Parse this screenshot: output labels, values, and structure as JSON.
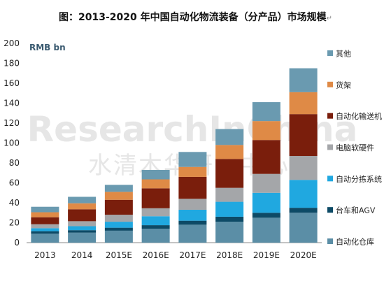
{
  "title": "图：2013-2020 年中国自动化物流装备（分产品）市场规模",
  "title_mark": "↵",
  "watermark": {
    "main": "ResearchInChina",
    "sub": "水清木华研究中心"
  },
  "chart_data": {
    "type": "bar",
    "stacked": true,
    "unit_label": "RMB bn",
    "categories": [
      "2013",
      "2014",
      "2015E",
      "2016E",
      "2017E",
      "2018E",
      "2019E",
      "2020E"
    ],
    "ylim": [
      0,
      200
    ],
    "yticks": [
      0,
      20,
      40,
      60,
      80,
      100,
      120,
      140,
      160,
      180,
      200
    ],
    "grid": false,
    "legend_position": "right",
    "series": [
      {
        "name": "自动化仓库",
        "color": "#5b8ea6",
        "values": [
          9,
          10,
          12,
          14,
          18,
          21,
          25,
          30
        ]
      },
      {
        "name": "台车和AGV",
        "color": "#0d4a66",
        "values": [
          2.5,
          2.5,
          3,
          3.5,
          4,
          5,
          5,
          5
        ]
      },
      {
        "name": "自动分拣系统",
        "color": "#20a8e0",
        "values": [
          3,
          4,
          6,
          9,
          11,
          15,
          20,
          28
        ]
      },
      {
        "name": "电脑软硬件",
        "color": "#a4a6a9",
        "values": [
          4,
          5,
          7,
          8,
          11,
          14,
          19,
          24
        ]
      },
      {
        "name": "自动化输送机",
        "color": "#7a1e0c",
        "values": [
          7,
          12,
          15,
          20,
          22,
          29,
          34,
          42
        ]
      },
      {
        "name": "货架",
        "color": "#df8a46",
        "values": [
          5,
          6,
          8,
          9,
          10,
          14,
          19,
          22
        ]
      },
      {
        "name": "其他",
        "color": "#6a9ab0",
        "values": [
          5.5,
          6.5,
          7,
          9.5,
          15,
          16,
          19,
          24
        ]
      }
    ]
  }
}
